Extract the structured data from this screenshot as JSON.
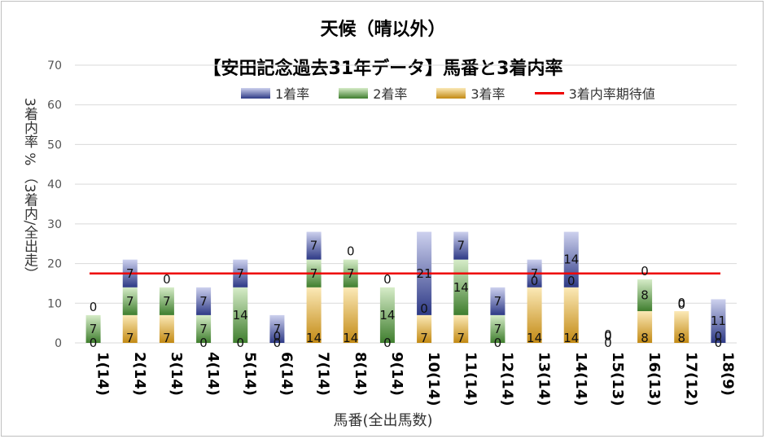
{
  "titles": {
    "line1": "天候（晴以外）",
    "line2": "【安田記念過去31年データ】馬番と3着内率"
  },
  "legend": {
    "s1": "1着率",
    "s2": "2着率",
    "s3": "3着率",
    "exp": "3着内率期待値"
  },
  "colors": {
    "s1_dark": "#2e3a86",
    "s1_light": "#cdd1ee",
    "s2_dark": "#3f7e2e",
    "s2_light": "#d6ecc8",
    "s3_dark": "#c38a14",
    "s3_light": "#fbe9b7",
    "expected": "#ee0000"
  },
  "chart_data": {
    "type": "bar",
    "stacked": true,
    "title": "天候（晴以外） 【安田記念過去31年データ】馬番と3着内率",
    "xlabel": "馬番(全出馬数)",
    "ylabel": "3着内率 %  （3着内/全出走）",
    "ylim": [
      0,
      70
    ],
    "yticks": [
      0,
      10,
      20,
      30,
      40,
      50,
      60,
      70
    ],
    "categories": [
      "1(14)",
      "2(14)",
      "3(14)",
      "4(14)",
      "5(14)",
      "6(14)",
      "7(14)",
      "8(14)",
      "9(14)",
      "10(14)",
      "11(14)",
      "12(14)",
      "13(14)",
      "14(14)",
      "15(13)",
      "16(13)",
      "17(12)",
      "18(9)"
    ],
    "series": [
      {
        "name": "1着率",
        "values": [
          0,
          7,
          0,
          7,
          7,
          7,
          7,
          0,
          0,
          21,
          7,
          7,
          7,
          14,
          0,
          0,
          0,
          11
        ]
      },
      {
        "name": "2着率",
        "values": [
          7,
          7,
          7,
          7,
          14,
          0,
          7,
          7,
          14,
          0,
          14,
          7,
          0,
          0,
          0,
          8,
          0,
          0
        ]
      },
      {
        "name": "3着率",
        "values": [
          0,
          7,
          7,
          0,
          0,
          0,
          14,
          14,
          0,
          7,
          7,
          0,
          14,
          14,
          0,
          8,
          8,
          0
        ]
      }
    ],
    "expected_line": {
      "name": "3着内率期待値",
      "value": 17.5
    },
    "grid": true,
    "legend_position": "top"
  }
}
